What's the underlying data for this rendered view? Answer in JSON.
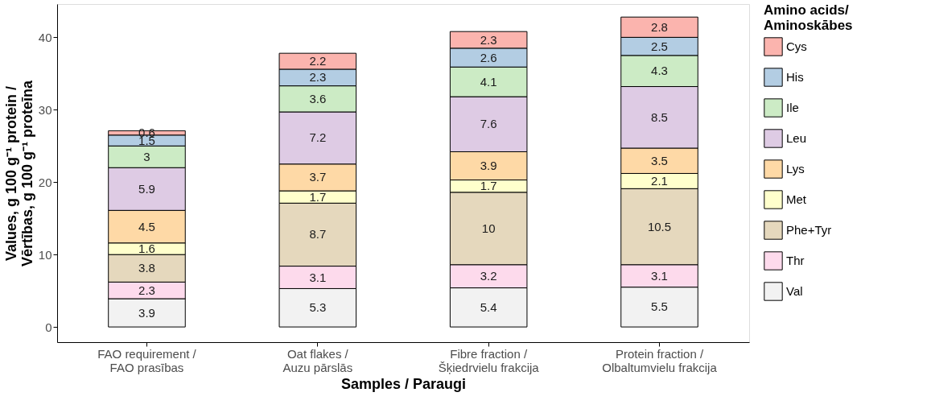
{
  "chart_data": {
    "type": "bar",
    "stacked": true,
    "xlabel": "Samples / Paraugi",
    "ylabel": "Values, g 100 g⁻¹ protein / Vērtības, g 100 g⁻¹ proteīna",
    "legend_title": "Amino acids/ Aminoskābes",
    "categories": [
      "FAO requirement / FAO prasības",
      "Oat flakes / Auzu pārslās",
      "Fibre fraction / Šķiedrvielu frakcija",
      "Protein fraction / Olbaltumvielu frakcija"
    ],
    "series": [
      {
        "name": "Val",
        "color": "#f2f2f2",
        "values": [
          3.9,
          5.3,
          5.4,
          5.5
        ]
      },
      {
        "name": "Thr",
        "color": "#fddaec",
        "values": [
          2.3,
          3.1,
          3.2,
          3.1
        ]
      },
      {
        "name": "Phe+Tyr",
        "color": "#e5d8bd",
        "values": [
          3.8,
          8.7,
          10,
          10.5
        ]
      },
      {
        "name": "Met",
        "color": "#ffffcc",
        "values": [
          1.6,
          1.7,
          1.7,
          2.1
        ]
      },
      {
        "name": "Lys",
        "color": "#fed9a6",
        "values": [
          4.5,
          3.7,
          3.9,
          3.5
        ]
      },
      {
        "name": "Leu",
        "color": "#decbe4",
        "values": [
          5.9,
          7.2,
          7.6,
          8.5
        ]
      },
      {
        "name": "Ile",
        "color": "#ccebc5",
        "values": [
          3,
          3.6,
          4.1,
          4.3
        ]
      },
      {
        "name": "His",
        "color": "#b3cde3",
        "values": [
          1.5,
          2.3,
          2.6,
          2.5
        ]
      },
      {
        "name": "Cys",
        "color": "#fbb4ae",
        "values": [
          0.6,
          2.2,
          2.3,
          2.8
        ]
      }
    ],
    "ylim": [
      -2.1,
      44.6
    ],
    "yticks": [
      0,
      10,
      20,
      30,
      40
    ],
    "grid": false,
    "legend": "right",
    "data_labels": true
  }
}
